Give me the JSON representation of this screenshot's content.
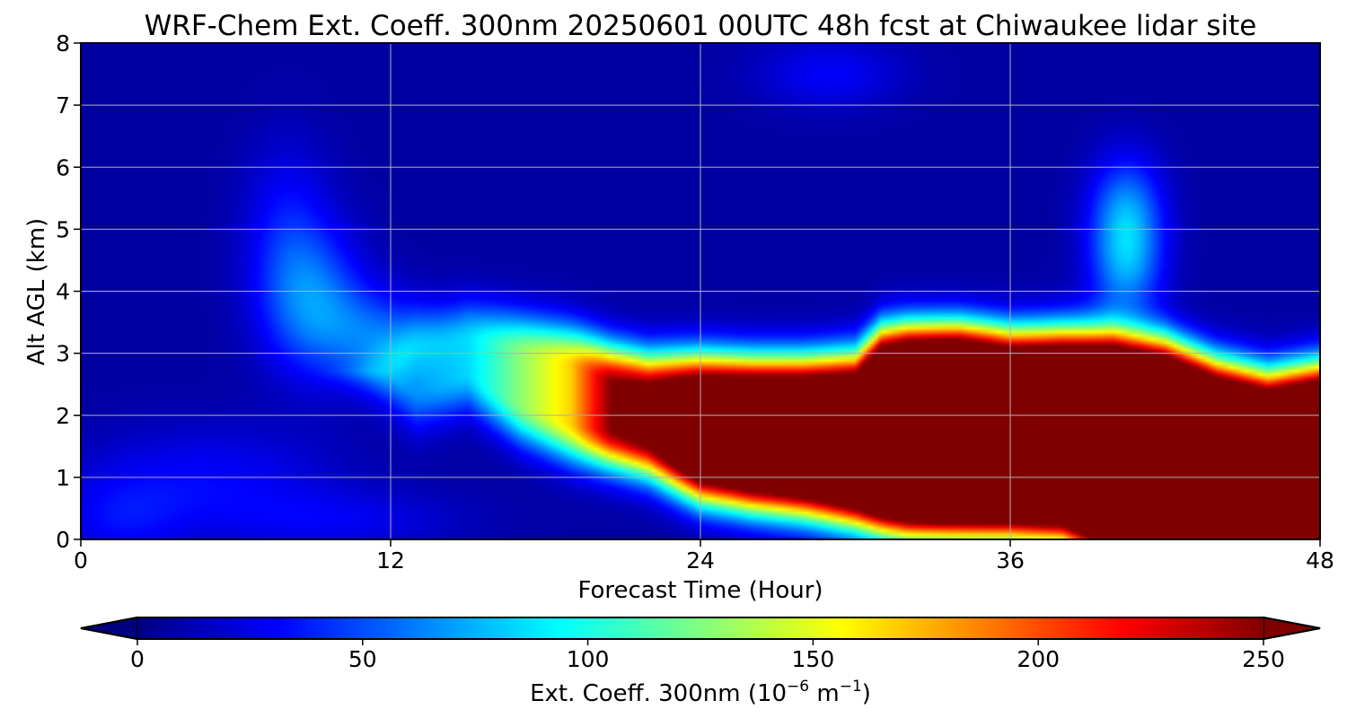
{
  "chart_data": {
    "type": "heatmap",
    "title": "WRF-Chem Ext. Coeff. 300nm  20250601 00UTC 48h fcst at Chiwaukee lidar site",
    "xlabel": "Forecast Time (Hour)",
    "ylabel": "Alt AGL (km)",
    "x_ticks": [
      "0",
      "12",
      "24",
      "36",
      "48"
    ],
    "y_ticks": [
      "0",
      "1",
      "2",
      "3",
      "4",
      "5",
      "6",
      "7",
      "8"
    ],
    "xlim": [
      0,
      48
    ],
    "ylim": [
      0,
      8
    ],
    "grid": true,
    "colormap": "jet",
    "colorbar": {
      "label_prefix": "Ext. Coeff. 300nm  (10",
      "exp1": "−6",
      "label_mid": " m",
      "exp2": "−1",
      "label_suffix": ")",
      "ticks": [
        "0",
        "50",
        "100",
        "150",
        "200",
        "250"
      ],
      "vmin": 0,
      "vmax": 250,
      "extend": "both",
      "placement": "bottom"
    },
    "background_value": 8,
    "bands": [
      {
        "name": "main-aerosol-layer",
        "points": [
          [
            13,
            2.7,
            0.3,
            55
          ],
          [
            15,
            2.95,
            0.25,
            75
          ],
          [
            17,
            2.6,
            0.4,
            120
          ],
          [
            19,
            2.35,
            0.45,
            160
          ],
          [
            20.5,
            2.15,
            0.35,
            240
          ],
          [
            22,
            2.0,
            0.35,
            260
          ],
          [
            24,
            1.8,
            0.55,
            300
          ],
          [
            26,
            1.7,
            0.6,
            320
          ],
          [
            28,
            1.65,
            0.65,
            320
          ],
          [
            30,
            1.6,
            0.75,
            320
          ],
          [
            31,
            1.75,
            1.0,
            330
          ],
          [
            32,
            1.75,
            1.05,
            340
          ],
          [
            34,
            1.75,
            1.05,
            340
          ],
          [
            36,
            1.7,
            1.0,
            340
          ],
          [
            38,
            1.7,
            1.05,
            340
          ],
          [
            40,
            1.5,
            1.25,
            340
          ],
          [
            42,
            1.25,
            1.35,
            340
          ],
          [
            44,
            1.05,
            1.2,
            340
          ],
          [
            46,
            1.0,
            1.05,
            340
          ],
          [
            48,
            1.0,
            1.2,
            340
          ]
        ],
        "edge_sharpness": 0.45
      }
    ],
    "plumes": [
      {
        "x": 9,
        "y": 3.8,
        "sx": 1.4,
        "sy": 0.8,
        "v": 50
      },
      {
        "x": 8,
        "y": 5.0,
        "sx": 1.2,
        "sy": 1.0,
        "v": 25
      },
      {
        "x": 11.5,
        "y": 3.3,
        "sx": 1.5,
        "sy": 0.5,
        "v": 40
      },
      {
        "x": 40.5,
        "y": 5.1,
        "sx": 1.0,
        "sy": 0.7,
        "v": 70
      },
      {
        "x": 40.5,
        "y": 4.2,
        "sx": 1.0,
        "sy": 0.5,
        "v": 30
      },
      {
        "x": 29,
        "y": 7.5,
        "sx": 2.0,
        "sy": 0.4,
        "v": 22
      },
      {
        "x": 5,
        "y": 1.0,
        "sx": 3.5,
        "sy": 0.6,
        "v": 22
      },
      {
        "x": 1.5,
        "y": 0.3,
        "sx": 1.8,
        "sy": 0.5,
        "v": 20
      },
      {
        "x": 10,
        "y": 0.3,
        "sx": 3.5,
        "sy": 0.35,
        "v": 18
      },
      {
        "x": 24,
        "y": 1.3,
        "sx": 1.0,
        "sy": 0.5,
        "v": 20
      },
      {
        "x": 33,
        "y": 0.8,
        "sx": 2.0,
        "sy": 0.5,
        "v": 40
      },
      {
        "x": 37,
        "y": 0.5,
        "sx": 2.5,
        "sy": 0.5,
        "v": 35
      },
      {
        "x": 34,
        "y": 3.2,
        "sx": 2.0,
        "sy": 0.3,
        "v": 25
      }
    ]
  }
}
